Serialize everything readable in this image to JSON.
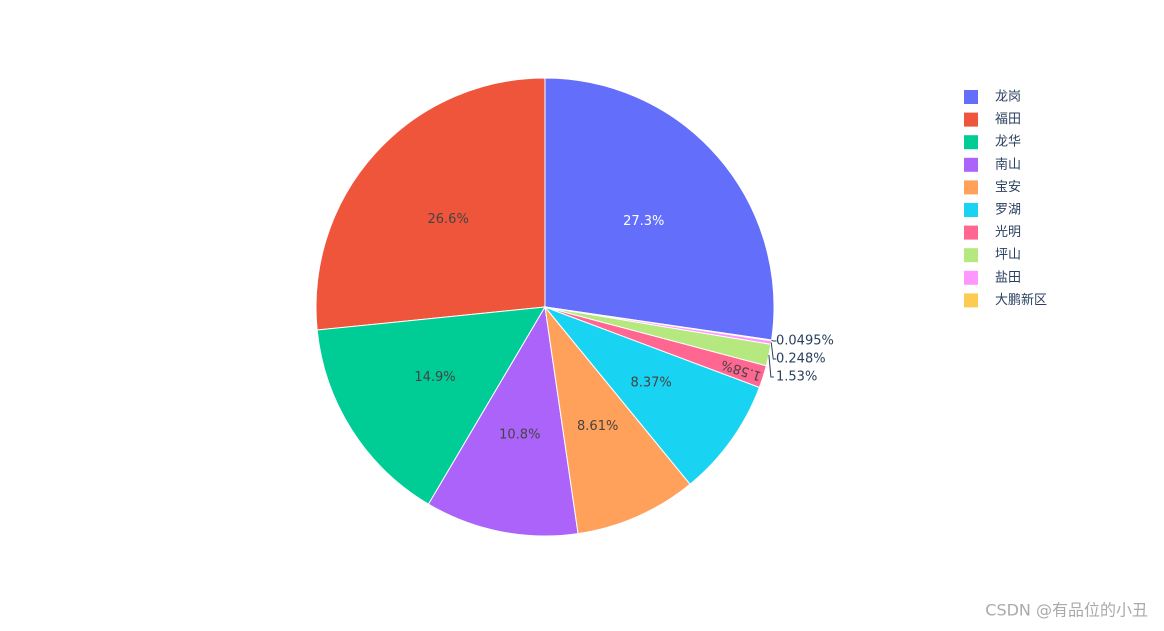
{
  "chart_data": {
    "type": "pie",
    "categories": [
      "龙岗",
      "福田",
      "龙华",
      "南山",
      "宝安",
      "罗湖",
      "光明",
      "坪山",
      "盐田",
      "大鹏新区"
    ],
    "values": [
      27.3,
      26.6,
      14.9,
      10.8,
      8.61,
      8.37,
      1.58,
      1.53,
      0.248,
      0.0495
    ],
    "value_labels": [
      "27.3%",
      "26.6%",
      "14.9%",
      "10.8%",
      "8.61%",
      "8.37%",
      "1.58%",
      "1.53%",
      "0.248%",
      "0.0495%"
    ],
    "colors": [
      "#636efa",
      "#ef553b",
      "#00cc96",
      "#ab63fa",
      "#ffa15a",
      "#19d3f3",
      "#ff6692",
      "#b6e880",
      "#ff97ff",
      "#fecb52"
    ],
    "legend": "right"
  },
  "watermark": "CSDN @有品位的小丑"
}
